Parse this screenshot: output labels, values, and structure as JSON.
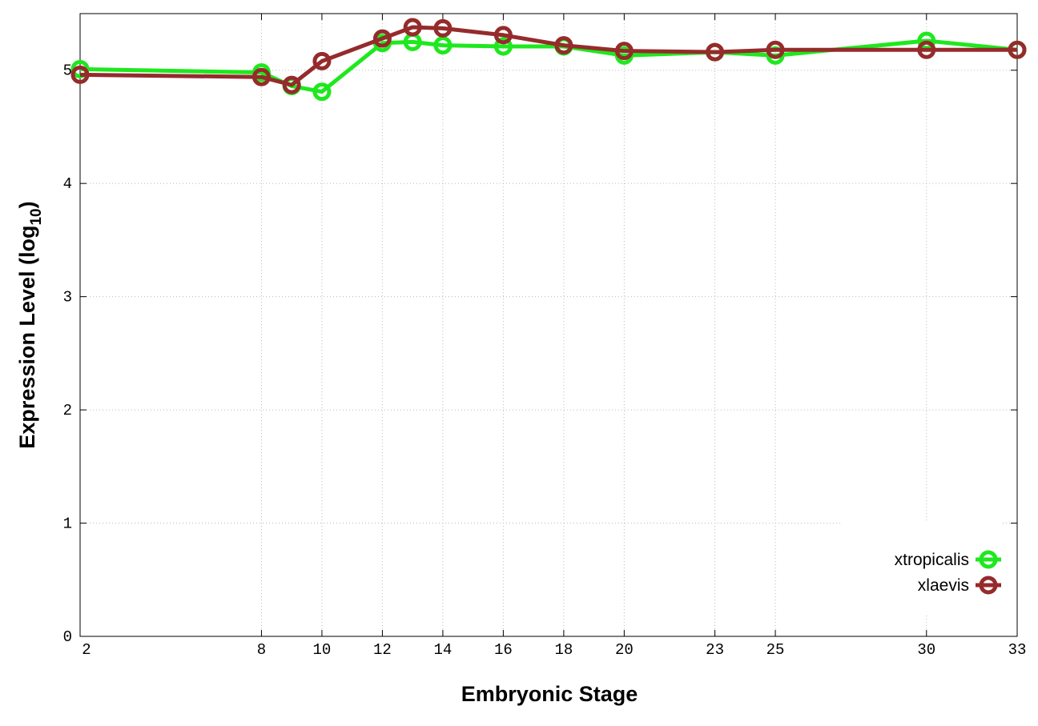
{
  "chart_data": {
    "type": "line",
    "x_label": "Embryonic Stage",
    "y_label": [
      "Expression Level (log",
      "10",
      ")"
    ],
    "x": [
      2,
      8,
      9,
      10,
      12,
      13,
      14,
      16,
      18,
      20,
      23,
      25,
      30,
      33
    ],
    "series": [
      {
        "name": "xtropicalis",
        "color": "#1ee81e",
        "values": [
          5.01,
          4.98,
          4.86,
          4.81,
          5.24,
          5.25,
          5.22,
          5.21,
          5.21,
          5.13,
          5.16,
          5.13,
          5.26,
          5.18
        ]
      },
      {
        "name": "xlaevis",
        "color": "#952b2b",
        "values": [
          4.96,
          4.94,
          4.87,
          5.08,
          5.28,
          5.38,
          5.37,
          5.31,
          5.22,
          5.17,
          5.16,
          5.18,
          5.18,
          5.18
        ]
      }
    ],
    "xlim": [
      2,
      33
    ],
    "ylim": [
      0,
      5.5
    ],
    "xticks": [
      2,
      8,
      10,
      12,
      14,
      16,
      18,
      20,
      23,
      25,
      30,
      33
    ],
    "yticks": [
      0,
      1,
      2,
      3,
      4,
      5
    ],
    "grid": true,
    "legend": "lower right"
  }
}
